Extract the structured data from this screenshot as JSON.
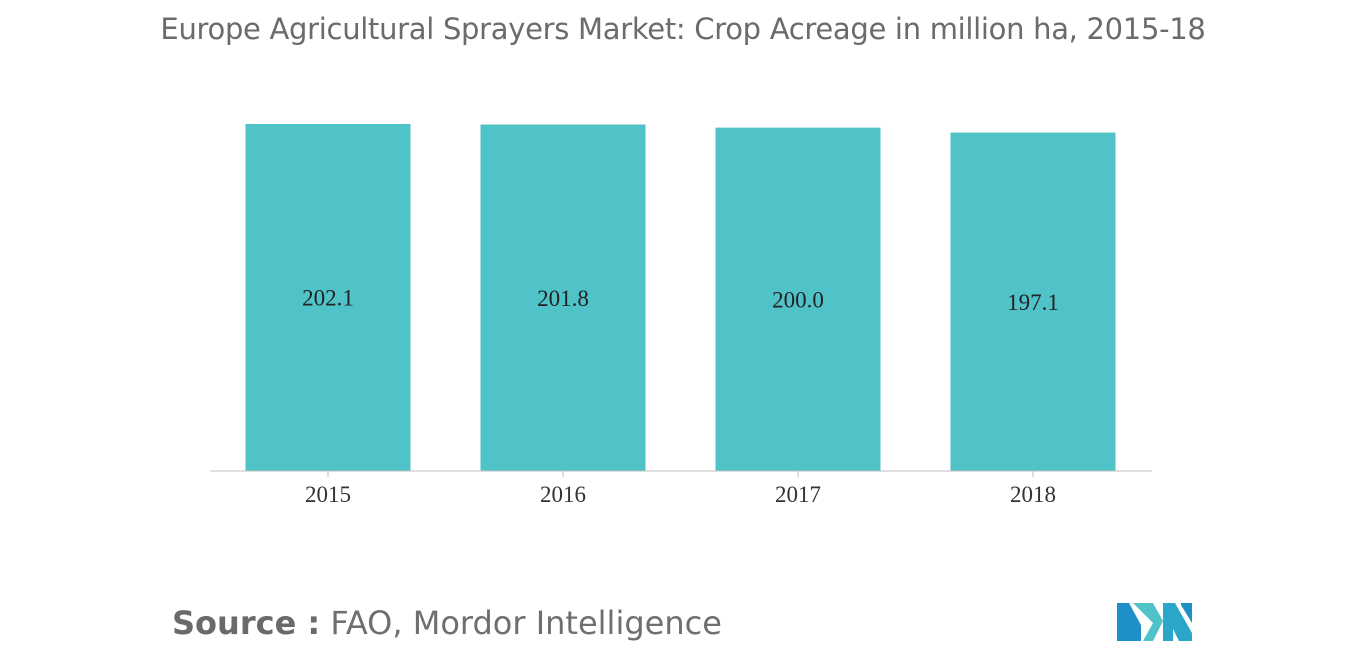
{
  "chart_data": {
    "type": "bar",
    "title": "Europe Agricultural Sprayers Market: Crop Acreage in million ha, 2015-18",
    "xlabel": "",
    "ylabel": "",
    "categories": [
      "2015",
      "2016",
      "2017",
      "2018"
    ],
    "values": [
      202.1,
      201.8,
      200.0,
      197.1
    ],
    "data_labels": [
      "202.1",
      "201.8",
      "200.0",
      "197.1"
    ],
    "bar_color": "#50c3c9",
    "grid": false,
    "legend": "none"
  },
  "source": {
    "label": "Source :",
    "text": "FAO, Mordor Intelligence"
  },
  "logo": {
    "icon": "mordor-intelligence-logo-icon",
    "colors": [
      "#1f8fc7",
      "#50c3c9",
      "#2aa7c8"
    ]
  }
}
